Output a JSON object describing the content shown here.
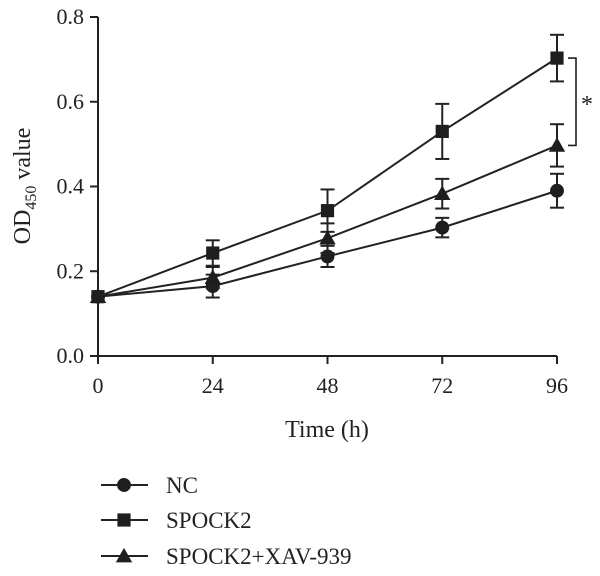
{
  "chart_data": {
    "type": "line",
    "title": "",
    "xlabel": "Time (h)",
    "ylabel": {
      "prefix": "OD",
      "subscript": "450",
      "suffix": " value"
    },
    "x": [
      0,
      24,
      48,
      72,
      96
    ],
    "xlim": [
      0,
      96
    ],
    "ylim": [
      0,
      0.8
    ],
    "xticks": [
      "0",
      "24",
      "48",
      "72",
      "96"
    ],
    "yticks": [
      "0.0",
      "0.2",
      "0.4",
      "0.6",
      "0.8"
    ],
    "grid": false,
    "legend_position": "bottom-left",
    "series": [
      {
        "name": "NC",
        "marker": "circle",
        "values": [
          0.14,
          0.165,
          0.235,
          0.303,
          0.39
        ],
        "errors": [
          0.0,
          0.027,
          0.025,
          0.023,
          0.04
        ]
      },
      {
        "name": "SPOCK2",
        "marker": "square",
        "values": [
          0.14,
          0.243,
          0.343,
          0.53,
          0.703
        ],
        "errors": [
          0.0,
          0.03,
          0.05,
          0.065,
          0.055
        ]
      },
      {
        "name": "SPOCK2+XAV-939",
        "marker": "triangle",
        "values": [
          0.14,
          0.185,
          0.278,
          0.383,
          0.497
        ],
        "errors": [
          0.0,
          0.025,
          0.035,
          0.035,
          0.05
        ]
      }
    ],
    "annotations": [
      {
        "text": "*",
        "between_series": [
          "SPOCK2",
          "SPOCK2+XAV-939"
        ],
        "at_x": 96
      }
    ]
  }
}
